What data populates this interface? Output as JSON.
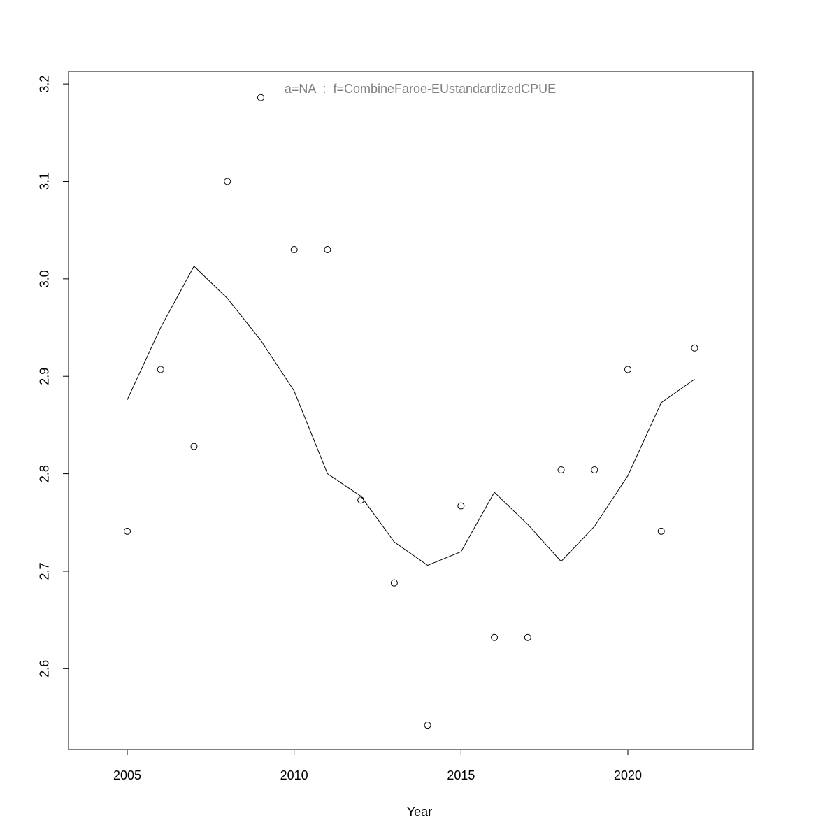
{
  "chart_data": {
    "type": "line",
    "annotation": "a=NA  :  f=CombineFaroe-EUstandardizedCPUE",
    "x_label": "Year",
    "x": [
      2005,
      2006,
      2007,
      2008,
      2009,
      2010,
      2011,
      2012,
      2013,
      2014,
      2015,
      2016,
      2017,
      2018,
      2019,
      2020,
      2021,
      2022
    ],
    "series": [
      {
        "mode": "points",
        "color": "#000000",
        "values": [
          2.741,
          2.907,
          2.828,
          3.1,
          3.186,
          3.03,
          3.03,
          2.773,
          2.688,
          2.542,
          2.767,
          2.632,
          2.632,
          2.804,
          2.804,
          2.907,
          2.741,
          2.929
        ]
      },
      {
        "mode": "line",
        "color": "#000000",
        "values": [
          2.876,
          2.95,
          3.013,
          2.98,
          2.937,
          2.885,
          2.8,
          2.777,
          2.73,
          2.706,
          2.72,
          2.781,
          2.748,
          2.71,
          2.746,
          2.798,
          2.873,
          2.897
        ]
      }
    ],
    "xlim": [
      2003.24,
      2023.75
    ],
    "ylim": [
      2.517,
      3.213
    ],
    "xticks": [
      2005,
      2010,
      2015,
      2020
    ],
    "yticks": [
      {
        "value": 2.6,
        "label": "2.6"
      },
      {
        "value": 2.7,
        "label": "2.7"
      },
      {
        "value": 2.8,
        "label": "2.8"
      },
      {
        "value": 2.9,
        "label": "2.9"
      },
      {
        "value": 3.0,
        "label": "3.0"
      },
      {
        "value": 3.1,
        "label": "3.1"
      },
      {
        "value": 3.2,
        "label": "3.2"
      }
    ],
    "grid": false
  }
}
